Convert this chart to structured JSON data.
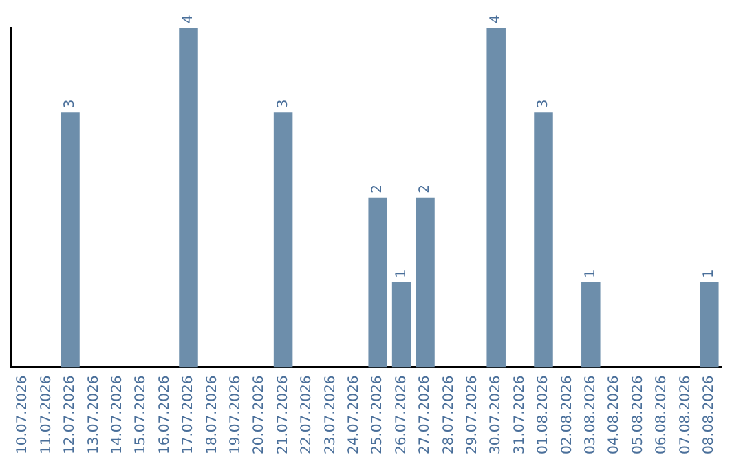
{
  "chart_data": {
    "type": "bar",
    "categories": [
      "10.07.2026",
      "11.07.2026",
      "12.07.2026",
      "13.07.2026",
      "14.07.2026",
      "15.07.2026",
      "16.07.2026",
      "17.07.2026",
      "18.07.2026",
      "19.07.2026",
      "20.07.2026",
      "21.07.2026",
      "22.07.2026",
      "23.07.2026",
      "24.07.2026",
      "25.07.2026",
      "26.07.2026",
      "27.07.2026",
      "28.07.2026",
      "29.07.2026",
      "30.07.2026",
      "31.07.2026",
      "01.08.2026",
      "02.08.2026",
      "03.08.2026",
      "04.08.2026",
      "05.08.2026",
      "06.08.2026",
      "07.08.2026",
      "08.08.2026"
    ],
    "values": [
      0,
      0,
      3,
      0,
      0,
      0,
      0,
      4,
      0,
      0,
      0,
      3,
      0,
      0,
      0,
      2,
      1,
      2,
      0,
      0,
      4,
      0,
      3,
      0,
      1,
      0,
      0,
      0,
      0,
      1
    ],
    "value_labels": [
      null,
      null,
      "3",
      null,
      null,
      null,
      null,
      "4",
      null,
      null,
      null,
      "3",
      null,
      null,
      null,
      "2",
      "1",
      "2",
      null,
      null,
      "4",
      null,
      "3",
      null,
      "1",
      null,
      null,
      null,
      null,
      "1"
    ],
    "color": "#6d8eab",
    "grid": false,
    "legend": false,
    "tick_labels": "x"
  }
}
